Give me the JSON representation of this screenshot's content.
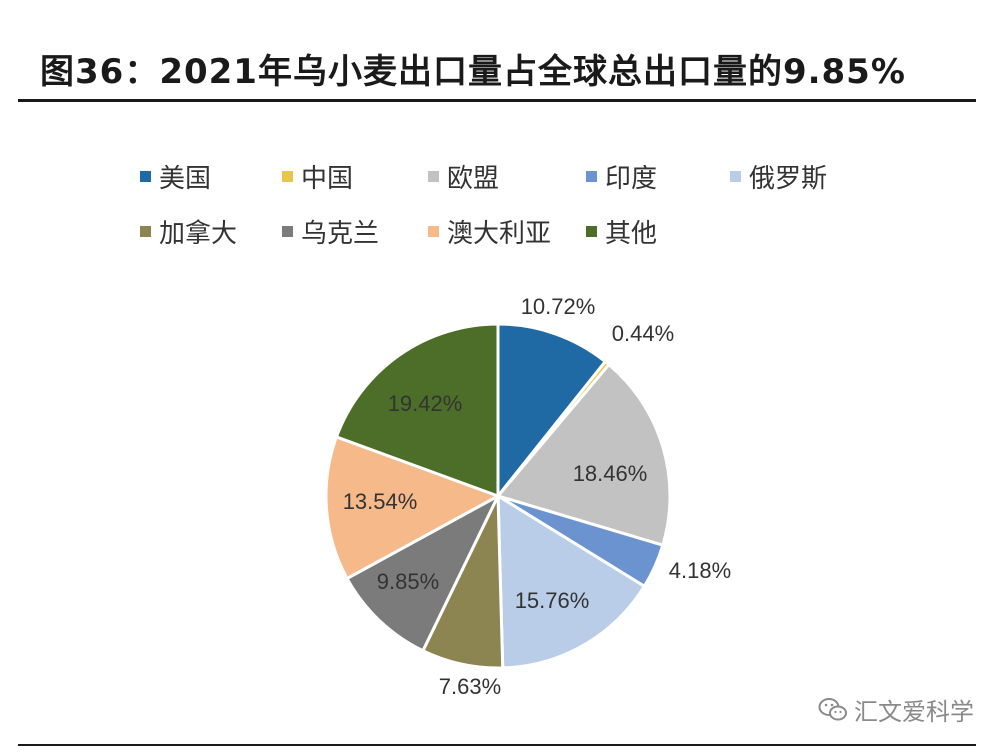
{
  "header": {
    "title": "图36：2021年乌小麦出口量占全球总出口量的9.85%"
  },
  "chart_data": {
    "type": "pie",
    "title": "图36：2021年乌小麦出口量占全球总出口量的9.85%",
    "unit": "%",
    "legend_position": "top",
    "slices": [
      {
        "label": "美国",
        "value": 10.72,
        "value_label": "10.72%",
        "color": "#1f6aa5"
      },
      {
        "label": "中国",
        "value": 0.44,
        "value_label": "0.44%",
        "color": "#e8c54c"
      },
      {
        "label": "欧盟",
        "value": 18.46,
        "value_label": "18.46%",
        "color": "#c2c2c2"
      },
      {
        "label": "印度",
        "value": 4.18,
        "value_label": "4.18%",
        "color": "#6b93cf"
      },
      {
        "label": "俄罗斯",
        "value": 15.76,
        "value_label": "15.76%",
        "color": "#b9cde8"
      },
      {
        "label": "加拿大",
        "value": 7.63,
        "value_label": "7.63%",
        "color": "#8c8551"
      },
      {
        "label": "乌克兰",
        "value": 9.85,
        "value_label": "9.85%",
        "color": "#7b7b7b"
      },
      {
        "label": "澳大利亚",
        "value": 13.54,
        "value_label": "13.54%",
        "color": "#f5b98a"
      },
      {
        "label": "其他",
        "value": 19.42,
        "value_label": "19.42%",
        "color": "#4d6e29"
      }
    ]
  },
  "watermark": {
    "text": "汇文爱科学",
    "icon": "wechat-icon"
  }
}
